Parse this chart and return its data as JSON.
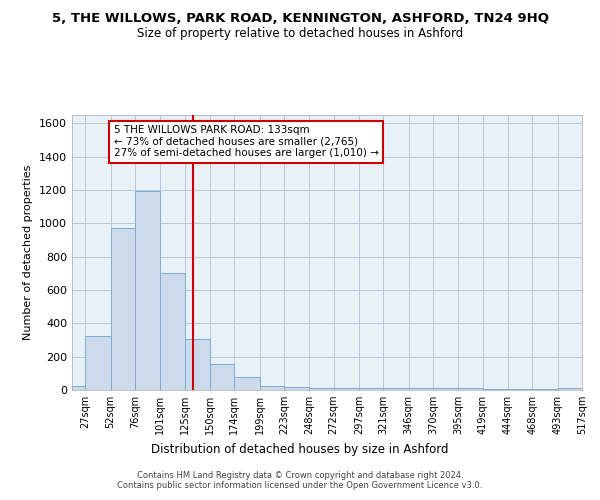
{
  "title": "5, THE WILLOWS, PARK ROAD, KENNINGTON, ASHFORD, TN24 9HQ",
  "subtitle": "Size of property relative to detached houses in Ashford",
  "xlabel": "Distribution of detached houses by size in Ashford",
  "ylabel": "Number of detached properties",
  "bar_color": "#ccdaeb",
  "bar_edge_color": "#7aadd4",
  "background_color": "#ffffff",
  "axes_bg_color": "#e8f0f8",
  "grid_color": "#b8c8d8",
  "vline_x": 133,
  "vline_color": "#cc0000",
  "annotation_text": "5 THE WILLOWS PARK ROAD: 133sqm\n← 73% of detached houses are smaller (2,765)\n27% of semi-detached houses are larger (1,010) →",
  "annotation_box_facecolor": "#ffffff",
  "annotation_box_edgecolor": "#cc0000",
  "footer_text": "Contains HM Land Registry data © Crown copyright and database right 2024.\nContains public sector information licensed under the Open Government Licence v3.0.",
  "bin_edges": [
    14,
    27,
    52,
    76,
    101,
    125,
    150,
    174,
    199,
    223,
    248,
    272,
    297,
    321,
    346,
    370,
    395,
    419,
    444,
    468,
    493,
    517
  ],
  "bin_counts": [
    25,
    325,
    970,
    1195,
    700,
    305,
    155,
    78,
    25,
    18,
    15,
    15,
    10,
    10,
    10,
    10,
    10,
    5,
    5,
    5,
    15
  ],
  "ylim": [
    0,
    1650
  ],
  "yticks": [
    0,
    200,
    400,
    600,
    800,
    1000,
    1200,
    1400,
    1600
  ],
  "tick_labels": [
    "27sqm",
    "52sqm",
    "76sqm",
    "101sqm",
    "125sqm",
    "150sqm",
    "174sqm",
    "199sqm",
    "223sqm",
    "248sqm",
    "272sqm",
    "297sqm",
    "321sqm",
    "346sqm",
    "370sqm",
    "395sqm",
    "419sqm",
    "444sqm",
    "468sqm",
    "493sqm",
    "517sqm"
  ],
  "figsize": [
    6.0,
    5.0
  ],
  "dpi": 100
}
